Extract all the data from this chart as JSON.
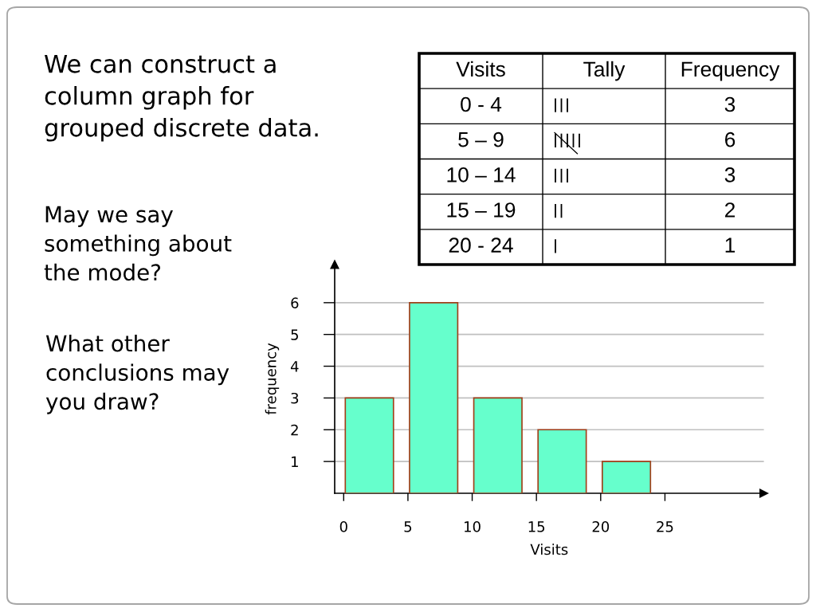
{
  "chart_data": [
    {
      "type": "bar",
      "title": "We can construct a\ncolumn graph for\ngrouped discrete data.",
      "xlabel": "Visits",
      "ylabel": "frequency",
      "x": [
        2,
        7,
        12,
        17,
        22
      ],
      "values": [
        3,
        6,
        3,
        2,
        1
      ],
      "color": "#66ffcc",
      "xlim": [
        -0.7,
        32.7
      ],
      "ylim": [
        0,
        7.2
      ],
      "xticks": [
        0,
        5,
        10,
        15,
        20,
        25
      ],
      "yticks": [
        1,
        2,
        3,
        4,
        5,
        6
      ],
      "grid": "y",
      "annotations": [
        "May we say\nsomething about\nthe mode?",
        "What other\nconclusions may\nyou draw?"
      ]
    },
    {
      "type": "other",
      "categories": [
        "0 - 4",
        "5 – 9",
        "10 – 14",
        "15 – 19",
        "20 - 24"
      ],
      "values": [
        3,
        6,
        3,
        2,
        1
      ],
      "data_labels": true,
      "annotations": [
        "Visits",
        "Tally",
        "Frequency"
      ]
    }
  ]
}
